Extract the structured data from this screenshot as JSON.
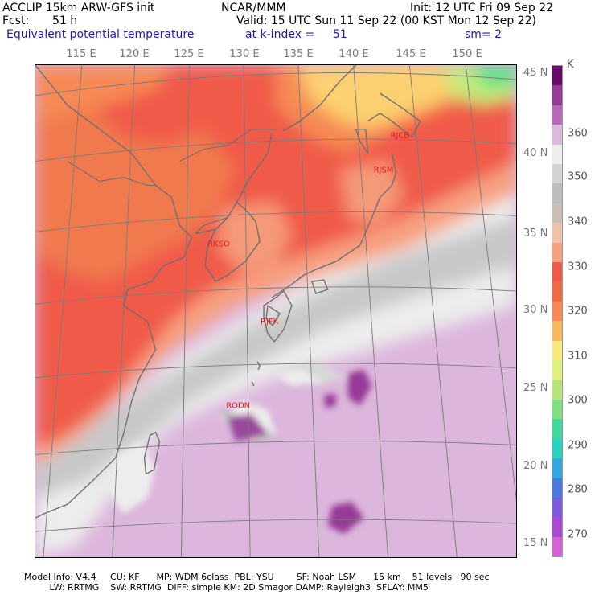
{
  "header": {
    "model": "ACCLIP 15km ARW-GFS init",
    "org": "NCAR/MMM",
    "init": "Init: 12 UTC Fri 09 Sep 22",
    "fcst_label": "Fcst:",
    "fcst_value": "51 h",
    "valid": "Valid: 15 UTC Sun 11 Sep 22 (00 KST Mon 12 Sep 22)",
    "field": "Equivalent potential temperature",
    "level": "at k-index =",
    "level_value": "51",
    "smooth": "sm= 2"
  },
  "longitude_labels": [
    "115 E",
    "120 E",
    "125 E",
    "130 E",
    "135 E",
    "140 E",
    "145 E",
    "150 E"
  ],
  "latitude_labels": [
    "45 N",
    "40 N",
    "35 N",
    "30 N",
    "25 N",
    "20 N",
    "15 N"
  ],
  "stations": [
    "RJCB",
    "RJSM",
    "RKSO",
    "RJFK",
    "RODN"
  ],
  "colorbar": {
    "unit": "K",
    "labels": [
      "360",
      "350",
      "340",
      "330",
      "320",
      "310",
      "300",
      "290",
      "280",
      "270"
    ],
    "colors": [
      "#6a0a6a",
      "#963a96",
      "#b86ab8",
      "#ddb8dd",
      "#eeeeee",
      "#d4d4d4",
      "#bdbdbd",
      "#c9c0b8",
      "#f0c0a8",
      "#f7a080",
      "#f05a4a",
      "#f26a44",
      "#f78a54",
      "#fbb860",
      "#fbe67a",
      "#e0f07a",
      "#b6e67a",
      "#80e080",
      "#40d89a",
      "#28d4c0",
      "#34a6e0",
      "#4a7adc",
      "#7a5adc",
      "#a84ad4",
      "#d860d8"
    ]
  },
  "footer": {
    "line1": "Model Info: V4.4     CU: KF      MP: WDM 6class  PBL: YSU        SF: Noah LSM      15 km    51 levels   90 sec",
    "line2": "         LW: RRTMG    SW: RRTMG  DIFF: simple KM: 2D Smagor DAMP: Rayleigh3  SFLAY: MM5"
  }
}
